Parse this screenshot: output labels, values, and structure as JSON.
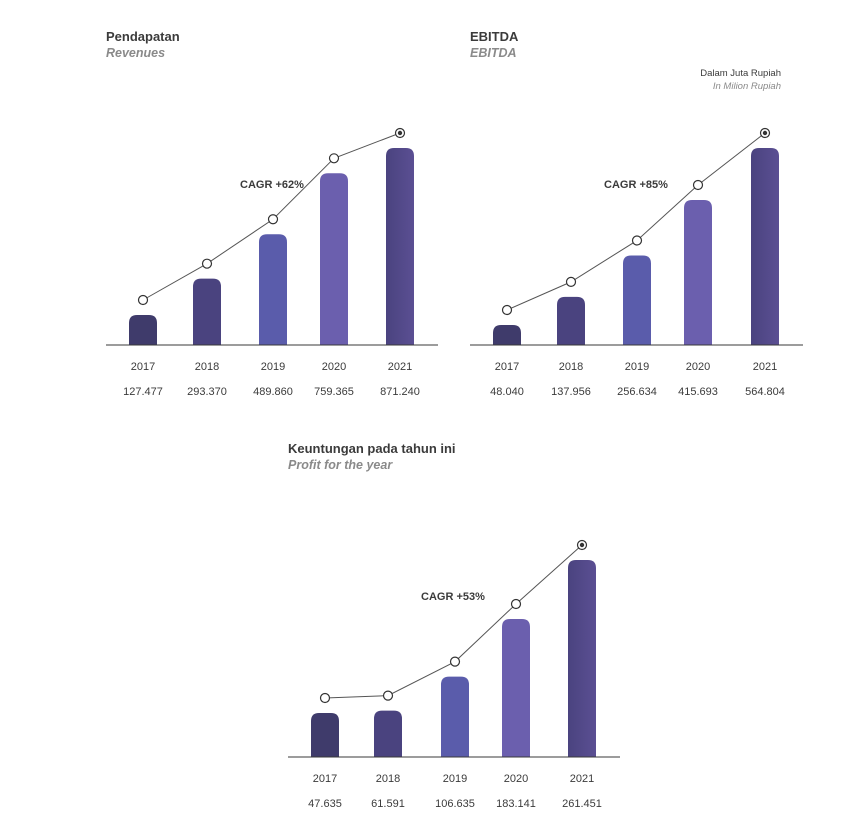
{
  "unit_note": {
    "id": "Dalam Juta Rupiah",
    "en": "In Milion Rupiah"
  },
  "colors": {
    "bar_dark": "#3f3b6b",
    "bar_mid": "#5a5cab",
    "bar_light": "#6b5fae",
    "bar_last": "#4a437f",
    "line": "#555555",
    "marker_fill": "#ffffff",
    "axis": "#3a3a3a"
  },
  "chart_data": [
    {
      "type": "bar",
      "title": "Pendapatan",
      "subtitle": "Revenues",
      "annotation": "CAGR +62%",
      "categories": [
        "2017",
        "2018",
        "2019",
        "2020",
        "2021"
      ],
      "values": [
        127477,
        293370,
        489860,
        759365,
        871240
      ],
      "labels": [
        "127.477",
        "293.370",
        "489.860",
        "759.365",
        "871.240"
      ],
      "overlay_line": "trend line with circle markers above each bar",
      "ylim": [
        0,
        871240
      ]
    },
    {
      "type": "bar",
      "title": "EBITDA",
      "subtitle": "EBITDA",
      "annotation": "CAGR +85%",
      "categories": [
        "2017",
        "2018",
        "2019",
        "2020",
        "2021"
      ],
      "values": [
        48040,
        137956,
        256634,
        415693,
        564804
      ],
      "labels": [
        "48.040",
        "137.956",
        "256.634",
        "415.693",
        "564.804"
      ],
      "overlay_line": "trend line with circle markers above each bar",
      "ylim": [
        0,
        564804
      ]
    },
    {
      "type": "bar",
      "title": "Keuntungan pada tahun ini",
      "subtitle": "Profit for the year",
      "annotation": "CAGR +53%",
      "categories": [
        "2017",
        "2018",
        "2019",
        "2020",
        "2021"
      ],
      "values": [
        47635,
        61591,
        106635,
        183141,
        261451
      ],
      "labels": [
        "47.635",
        "61.591",
        "106.635",
        "183.141",
        "261.451"
      ],
      "overlay_line": "trend line with circle markers above each bar",
      "ylim": [
        0,
        261451
      ]
    }
  ]
}
